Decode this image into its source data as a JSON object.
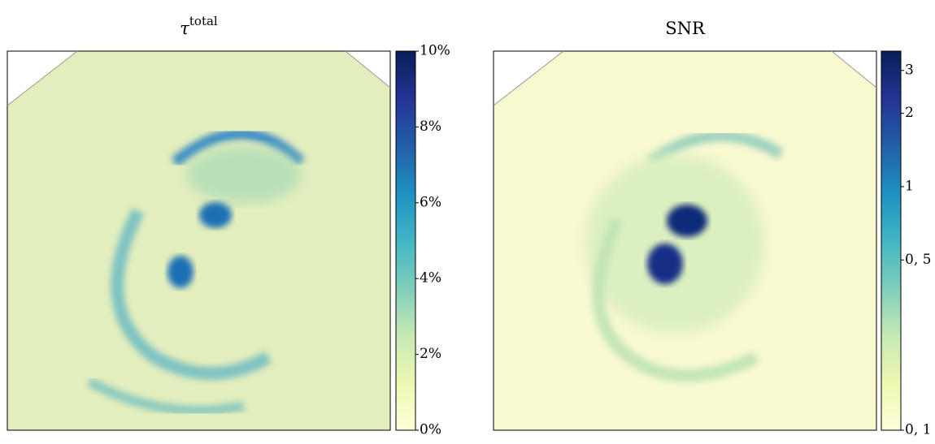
{
  "chart_data": [
    {
      "type": "image",
      "title": "τ",
      "title_superscript": "total",
      "colormap": "YlGnBu",
      "clim": [
        0,
        10
      ],
      "scale": "linear",
      "cticks": [
        {
          "value": 0,
          "label": "0%"
        },
        {
          "value": 2,
          "label": "2%"
        },
        {
          "value": 4,
          "label": "4%"
        },
        {
          "value": 6,
          "label": "6%"
        },
        {
          "value": 8,
          "label": "8%"
        },
        {
          "value": 10,
          "label": "10%"
        }
      ]
    },
    {
      "type": "image",
      "title": "SNR",
      "colormap": "YlGnBu",
      "clim": [
        0.1,
        3.6
      ],
      "scale": "log",
      "cticks": [
        {
          "value": 0.1,
          "label": "0, 1"
        },
        {
          "value": 0.5,
          "label": "0, 5"
        },
        1,
        2,
        3
      ]
    }
  ]
}
